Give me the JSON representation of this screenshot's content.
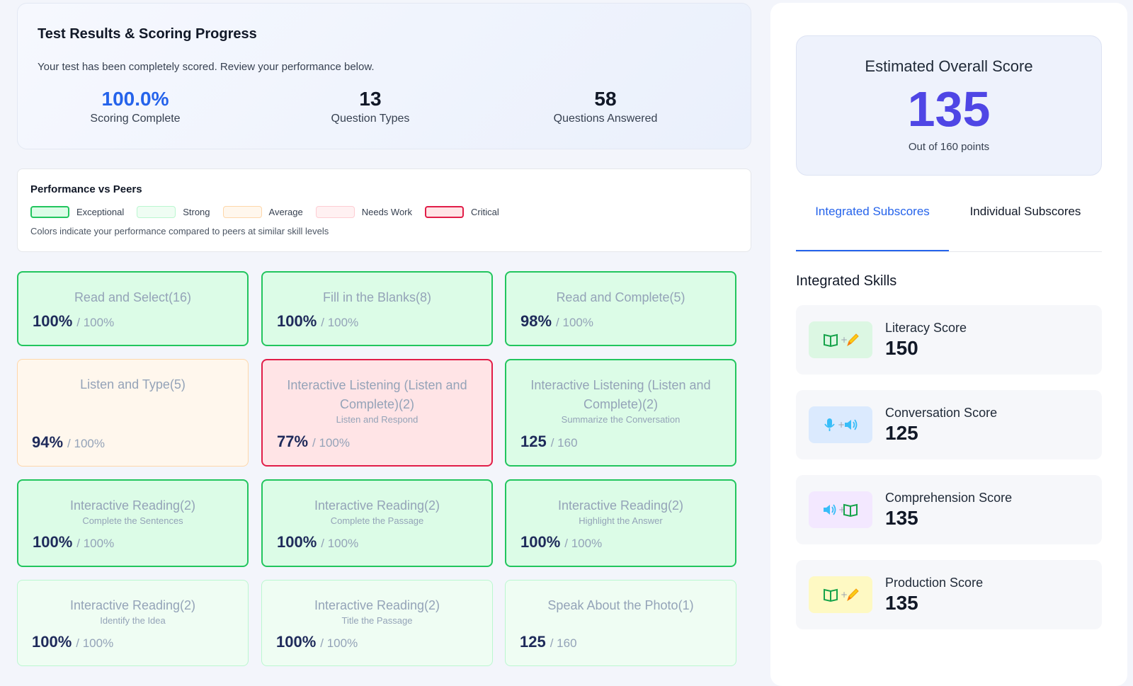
{
  "progress": {
    "title": "Test Results & Scoring Progress",
    "description": "Your test has been completely scored. Review your performance below.",
    "stats": [
      {
        "value": "100.0%",
        "label": "Scoring Complete"
      },
      {
        "value": "13",
        "label": "Question Types"
      },
      {
        "value": "58",
        "label": "Questions Answered"
      }
    ]
  },
  "peers": {
    "title": "Performance vs Peers",
    "legend": [
      "Exceptional",
      "Strong",
      "Average",
      "Needs Work",
      "Critical"
    ],
    "note": "Colors indicate your performance compared to peers at similar skill levels"
  },
  "tiles": [
    {
      "title": "Read and Select(16)",
      "subtitle": "",
      "value": "100%",
      "max": "/ 100%",
      "level": "Exceptional"
    },
    {
      "title": "Fill in the Blanks(8)",
      "subtitle": "",
      "value": "100%",
      "max": "/ 100%",
      "level": "Exceptional"
    },
    {
      "title": "Read and Complete(5)",
      "subtitle": "",
      "value": "98%",
      "max": "/ 100%",
      "level": "Exceptional"
    },
    {
      "title": "Listen and Type(5)",
      "subtitle": "",
      "value": "94%",
      "max": "/ 100%",
      "level": "Average"
    },
    {
      "title": "Interactive Listening (Listen and Complete)(2)",
      "subtitle": "Listen and Respond",
      "value": "77%",
      "max": "/ 100%",
      "level": "Critical"
    },
    {
      "title": "Interactive Listening (Listen and Complete)(2)",
      "subtitle": "Summarize the Conversation",
      "value": "125",
      "max": "/ 160",
      "level": "Exceptional"
    },
    {
      "title": "Interactive Reading(2)",
      "subtitle": "Complete the Sentences",
      "value": "100%",
      "max": "/ 100%",
      "level": "Exceptional"
    },
    {
      "title": "Interactive Reading(2)",
      "subtitle": "Complete the Passage",
      "value": "100%",
      "max": "/ 100%",
      "level": "Exceptional"
    },
    {
      "title": "Interactive Reading(2)",
      "subtitle": "Highlight the Answer",
      "value": "100%",
      "max": "/ 100%",
      "level": "Exceptional"
    },
    {
      "title": "Interactive Reading(2)",
      "subtitle": "Identify the Idea",
      "value": "100%",
      "max": "/ 100%",
      "level": "Strong"
    },
    {
      "title": "Interactive Reading(2)",
      "subtitle": "Title the Passage",
      "value": "100%",
      "max": "/ 100%",
      "level": "Strong"
    },
    {
      "title": "Speak About the Photo(1)",
      "subtitle": "",
      "value": "125",
      "max": "/ 160",
      "level": "Strong"
    }
  ],
  "overall": {
    "title": "Estimated Overall Score",
    "value": "135",
    "subtitle": "Out of 160 points"
  },
  "tabs": [
    {
      "label": "Integrated Subscores",
      "active": true
    },
    {
      "label": "Individual Subscores",
      "active": false
    }
  ],
  "skills": {
    "heading": "Integrated Skills",
    "items": [
      {
        "name": "Literacy Score",
        "value": "150",
        "icon": "book-plus-pencil-icon",
        "color": "#dcf7e3"
      },
      {
        "name": "Conversation Score",
        "value": "125",
        "icon": "microphone-plus-speaker-icon",
        "color": "#dbeafe"
      },
      {
        "name": "Comprehension Score",
        "value": "135",
        "icon": "speaker-plus-book-icon",
        "color": "#f3e8ff"
      },
      {
        "name": "Production Score",
        "value": "135",
        "icon": "book-plus-pencil-icon",
        "color": "#fef9c3"
      }
    ]
  }
}
